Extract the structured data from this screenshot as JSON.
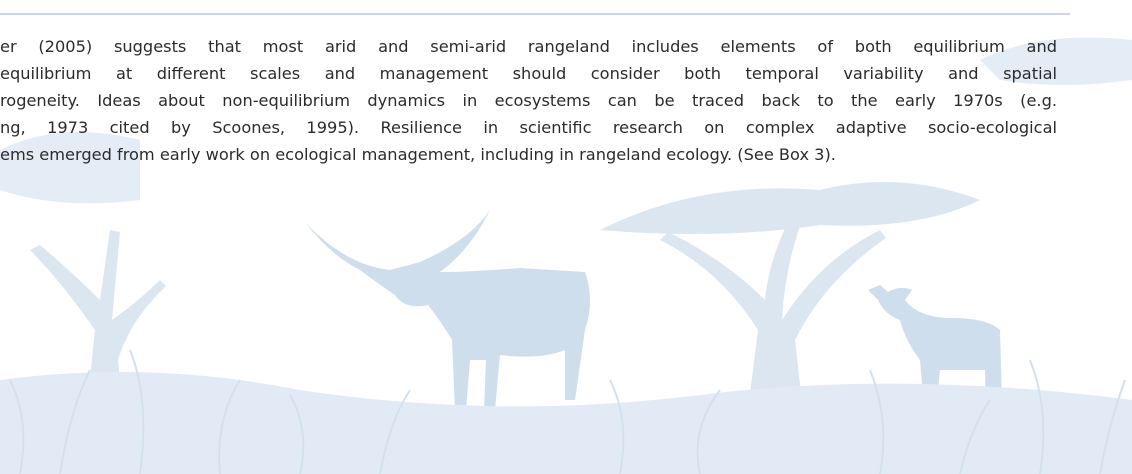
{
  "paragraph": {
    "lines": [
      "er (2005) suggests that most arid and semi-arid rangeland includes elements of both equilibrium and",
      "equilibrium at different scales and management should consider both temporal variability and spatial",
      "rogeneity. Ideas about non-equilibrium dynamics in ecosystems can be traced back to the early 1970s (e.g.",
      "ng, 1973 cited by Scoones, 1995). Resilience in scientific research on complex adaptive socio-ecological",
      "ems emerged from early work on ecological management, including in rangeland ecology. (See Box 3)."
    ]
  }
}
